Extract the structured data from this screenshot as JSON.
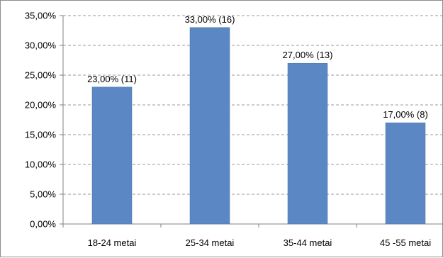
{
  "chart_data": {
    "type": "bar",
    "title": "",
    "xlabel": "",
    "ylabel": "",
    "categories": [
      "18-24 metai",
      "25-34 metai",
      "35-44 metai",
      "45 -55 metai"
    ],
    "values": [
      23.0,
      33.0,
      27.0,
      17.0
    ],
    "data_labels": [
      "23,00% (11)",
      "33,00% (16)",
      "27,00% (13)",
      "17,00% (8)"
    ],
    "ylim": [
      0,
      35
    ],
    "yticks": [
      0,
      5,
      10,
      15,
      20,
      25,
      30,
      35
    ],
    "ytick_labels": [
      "0,00%",
      "5,00%",
      "10,00%",
      "15,00%",
      "20,00%",
      "25,00%",
      "30,00%",
      "35,00%"
    ],
    "grid": true,
    "legend": "none",
    "bar_color": "#5B87C4",
    "bar_edge_color": "#4A72A8",
    "grid_color": "#9a9a9a",
    "axis_color": "#808080"
  }
}
